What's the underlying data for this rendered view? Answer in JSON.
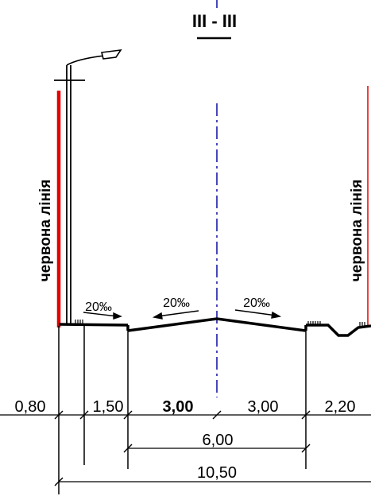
{
  "section": {
    "title": "III - III"
  },
  "labels": {
    "red_line_left": "червона лінія",
    "red_line_right": "червона лінія"
  },
  "slopes": {
    "left_sidewalk": "20‰",
    "left_carriageway": "20‰",
    "right_carriageway": "20‰"
  },
  "dimensions": {
    "d_080": "0,80",
    "d_150": "1,50",
    "d_300_left": "3,00",
    "d_300_right": "3,00",
    "d_220": "2,20",
    "d_600": "6,00",
    "d_1050": "10,50"
  },
  "colors": {
    "red_line": "#e60000",
    "axis": "#1a1aa8",
    "ink": "#000000"
  }
}
